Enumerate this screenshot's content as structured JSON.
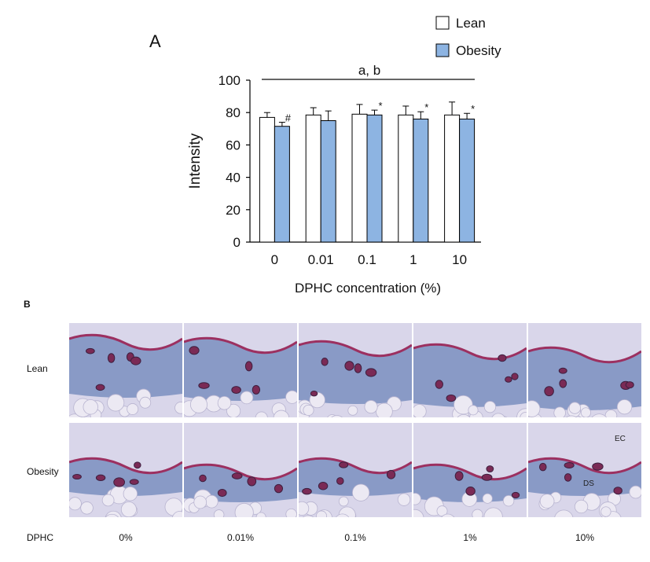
{
  "panel_a_letter": "A",
  "panel_b_letter": "B",
  "chart_data": {
    "type": "bar",
    "categories": [
      "0",
      "0.01",
      "0.1",
      "1",
      "10"
    ],
    "series": [
      {
        "name": "Lean",
        "values": [
          77,
          78.5,
          79,
          78.5,
          78.5
        ],
        "errors": [
          3,
          4.5,
          6,
          5.5,
          8
        ],
        "color": "#ffffff"
      },
      {
        "name": "Obesity",
        "values": [
          71.5,
          75,
          78.5,
          76,
          76
        ],
        "errors": [
          2.5,
          6,
          3,
          4.5,
          3.5
        ],
        "color": "#8db4e2",
        "marks": [
          "#",
          "",
          "*",
          "*",
          "*"
        ]
      }
    ],
    "xlabel": "DPHC concentration (%)",
    "ylabel": "Intensity",
    "ylim": [
      0,
      100
    ],
    "yticks": [
      0,
      20,
      40,
      60,
      80,
      100
    ],
    "annotation": "a, b",
    "legend_position": "top-right"
  },
  "panel_b": {
    "rows": [
      "Lean",
      "Obesity"
    ],
    "columns": [
      "0%",
      "0.01%",
      "0.1%",
      "1%",
      "10%"
    ],
    "x_label": "DPHC",
    "tissue_labels": [
      "EC",
      "DS"
    ]
  }
}
